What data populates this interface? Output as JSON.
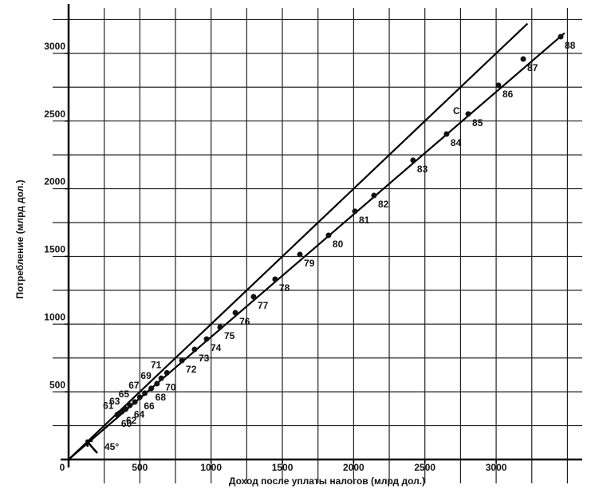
{
  "chart_data": {
    "type": "scatter",
    "x_label": "Доход после уплаты налогов (млрд дол.)",
    "y_label": "Потребление (млрд дол.)",
    "xlim": [
      0,
      3520
    ],
    "ylim": [
      0,
      3335
    ],
    "xticks": [
      0,
      500,
      1000,
      1500,
      2000,
      2500,
      3000
    ],
    "yticks": [
      500,
      1000,
      1500,
      2000,
      2500,
      3000
    ],
    "xgrid": [
      250,
      500,
      750,
      1000,
      1250,
      1500,
      1750,
      2000,
      2250,
      2500,
      2750,
      3000,
      3250,
      3500
    ],
    "ygrid": [
      250,
      500,
      750,
      1000,
      1250,
      1500,
      1750,
      2000,
      2250,
      2500,
      2750,
      3000,
      3250
    ],
    "grid": true,
    "color": "#111111",
    "labels": [
      "60",
      "61",
      "62",
      "63",
      "64",
      "65",
      "66",
      "67",
      "68",
      "69",
      "70",
      "71",
      "72",
      "73",
      "74",
      "75",
      "76",
      "77",
      "78",
      "79",
      "80",
      "81",
      "82",
      "83",
      "84",
      "85",
      "86",
      "87",
      "88"
    ],
    "x": [
      341,
      355,
      375,
      400,
      430,
      465,
      500,
      535,
      580,
      620,
      650,
      690,
      795,
      884,
      968,
      1063,
      1170,
      1298,
      1449,
      1623,
      1824,
      2009,
      2143,
      2417,
      2652,
      2804,
      3016,
      3190,
      3453
    ],
    "values": [
      330,
      341,
      355,
      372,
      400,
      425,
      460,
      490,
      525,
      560,
      600,
      640,
      731,
      813,
      890,
      978,
      1084,
      1202,
      1332,
      1514,
      1656,
      1833,
      1950,
      2210,
      2404,
      2552,
      2764,
      2958,
      3123
    ],
    "reference_lines": [
      {
        "label": "45°",
        "x": [
          0,
          3220
        ],
        "y": [
          0,
          3220
        ]
      },
      {
        "label": "C",
        "x": [
          0,
          3480
        ],
        "y": [
          0,
          3150
        ]
      }
    ]
  }
}
